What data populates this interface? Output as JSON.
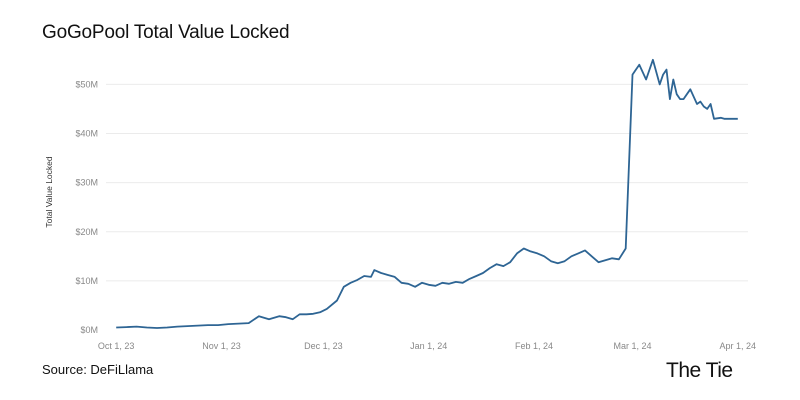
{
  "title": "GoGoPool Total Value Locked",
  "source": "Source: DeFiLlama",
  "brand": "The Tie",
  "chart_data": {
    "type": "line",
    "title": "GoGoPool Total Value Locked",
    "ylabel": "Total Value Locked",
    "xlabel": "",
    "x_ticks": [
      "Oct 1, 23",
      "Nov 1, 23",
      "Dec 1, 23",
      "Jan 1, 24",
      "Feb 1, 24",
      "Mar 1, 24",
      "Apr 1, 24"
    ],
    "y_ticks": [
      "$0M",
      "$10M",
      "$20M",
      "$30M",
      "$40M",
      "$50M"
    ],
    "ylim": [
      0,
      57
    ],
    "xlim": [
      "2023-09-28",
      "2024-04-04"
    ],
    "grid": "horizontal",
    "line_color": "#2e6594",
    "series": [
      {
        "x": [
          "2023-10-01",
          "2023-10-04",
          "2023-10-07",
          "2023-10-10",
          "2023-10-13",
          "2023-10-16",
          "2023-10-19",
          "2023-10-22",
          "2023-10-25",
          "2023-10-28",
          "2023-10-31",
          "2023-11-03",
          "2023-11-06",
          "2023-11-09",
          "2023-11-12",
          "2023-11-15",
          "2023-11-18",
          "2023-11-20",
          "2023-11-22",
          "2023-11-24",
          "2023-11-26",
          "2023-11-28",
          "2023-11-30",
          "2023-12-02",
          "2023-12-05",
          "2023-12-07",
          "2023-12-09",
          "2023-12-11",
          "2023-12-13",
          "2023-12-15",
          "2023-12-16",
          "2023-12-18",
          "2023-12-20",
          "2023-12-22",
          "2023-12-24",
          "2023-12-26",
          "2023-12-28",
          "2023-12-30",
          "2024-01-01",
          "2024-01-03",
          "2024-01-05",
          "2024-01-07",
          "2024-01-09",
          "2024-01-11",
          "2024-01-13",
          "2024-01-15",
          "2024-01-17",
          "2024-01-19",
          "2024-01-21",
          "2024-01-23",
          "2024-01-25",
          "2024-01-27",
          "2024-01-29",
          "2024-01-31",
          "2024-02-02",
          "2024-02-04",
          "2024-02-06",
          "2024-02-08",
          "2024-02-10",
          "2024-02-12",
          "2024-02-14",
          "2024-02-16",
          "2024-02-18",
          "2024-02-20",
          "2024-02-22",
          "2024-02-24",
          "2024-02-26",
          "2024-02-28",
          "2024-03-01",
          "2024-03-03",
          "2024-03-05",
          "2024-03-07",
          "2024-03-09",
          "2024-03-10",
          "2024-03-11",
          "2024-03-12",
          "2024-03-13",
          "2024-03-14",
          "2024-03-15",
          "2024-03-16",
          "2024-03-17",
          "2024-03-18",
          "2024-03-19",
          "2024-03-20",
          "2024-03-21",
          "2024-03-22",
          "2024-03-23",
          "2024-03-24",
          "2024-03-25",
          "2024-03-27",
          "2024-03-28",
          "2024-03-29",
          "2024-03-30",
          "2024-04-01"
        ],
        "values": [
          0.5,
          0.6,
          0.7,
          0.5,
          0.4,
          0.5,
          0.7,
          0.8,
          0.9,
          1.0,
          1.0,
          1.2,
          1.3,
          1.4,
          2.8,
          2.2,
          2.8,
          2.6,
          2.2,
          3.2,
          3.2,
          3.3,
          3.6,
          4.3,
          6.0,
          8.8,
          9.6,
          10.2,
          11.0,
          10.8,
          12.2,
          11.6,
          11.2,
          10.8,
          9.6,
          9.4,
          8.8,
          9.6,
          9.2,
          9.0,
          9.6,
          9.4,
          9.8,
          9.6,
          10.4,
          11.0,
          11.6,
          12.6,
          13.4,
          13.0,
          13.8,
          15.6,
          16.6,
          16.0,
          15.6,
          15.0,
          14.0,
          13.6,
          14.0,
          15.0,
          15.6,
          16.2,
          15.0,
          13.8,
          14.2,
          14.6,
          14.4,
          16.6,
          52.0,
          54.0,
          51.0,
          55.0,
          50.0,
          52.0,
          53.0,
          47.0,
          51.0,
          48.0,
          47.0,
          47.0,
          48.0,
          49.0,
          47.5,
          46.0,
          46.5,
          45.5,
          45.0,
          46.0,
          43.0,
          43.2,
          43.0,
          43.0,
          43.0,
          43.0
        ]
      }
    ]
  }
}
